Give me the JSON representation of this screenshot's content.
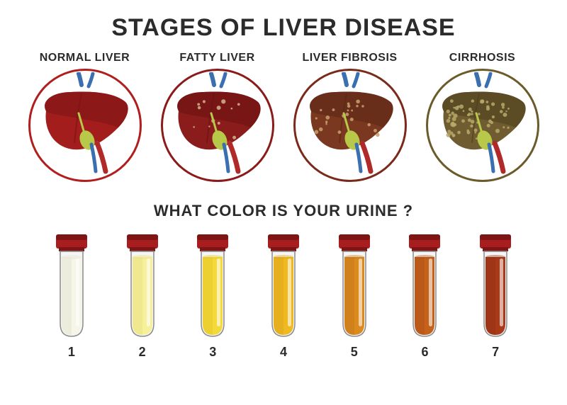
{
  "title": "STAGES OF LIVER DISEASE",
  "subtitle": "WHAT COLOR IS YOUR URINE ?",
  "title_fontsize": 34,
  "subtitle_fontsize": 22,
  "text_color": "#2b2b2b",
  "background": "#ffffff",
  "livers": [
    {
      "label": "NORMAL LIVER",
      "ring_color": "#b01e1e",
      "liver_fill": "#a31d1d",
      "liver_shade": "#7a1414",
      "spots": 0,
      "spot_color": "#ffffff"
    },
    {
      "label": "FATTY LIVER",
      "ring_color": "#8b1a1a",
      "liver_fill": "#8b1c1c",
      "liver_shade": "#691313",
      "spots": 12,
      "spot_color": "#d4b38c"
    },
    {
      "label": "LIVER FIBROSIS",
      "ring_color": "#7a2a1a",
      "liver_fill": "#7a3820",
      "liver_shade": "#5a2716",
      "spots": 24,
      "spot_color": "#c9a06e"
    },
    {
      "label": "CIRRHOSIS",
      "ring_color": "#6b5a2a",
      "liver_fill": "#6f5c30",
      "liver_shade": "#4d3f1e",
      "spots": 60,
      "spot_color": "#b8a86a"
    }
  ],
  "vessel_blue": "#3a6fb0",
  "vessel_red": "#b02a2a",
  "gallbladder": "#b8c94a",
  "tubes": [
    {
      "num": "1",
      "fluid": "#f5f5e8",
      "fluid_shade": "#e6e6d2"
    },
    {
      "num": "2",
      "fluid": "#f6f09a",
      "fluid_shade": "#e8e083"
    },
    {
      "num": "3",
      "fluid": "#f4d93a",
      "fluid_shade": "#e4c82a"
    },
    {
      "num": "4",
      "fluid": "#efb922",
      "fluid_shade": "#dba51a"
    },
    {
      "num": "5",
      "fluid": "#db8a1e",
      "fluid_shade": "#c67818"
    },
    {
      "num": "6",
      "fluid": "#c5611a",
      "fluid_shade": "#b05215"
    },
    {
      "num": "7",
      "fluid": "#a83a1a",
      "fluid_shade": "#933014"
    }
  ],
  "tube_cap_color": "#a81e1e",
  "tube_cap_shade": "#7e1414",
  "tube_glass_stroke": "#8a8a8a",
  "tube_glass_fill": "#f5f5f5",
  "tube_highlight": "#ffffff"
}
